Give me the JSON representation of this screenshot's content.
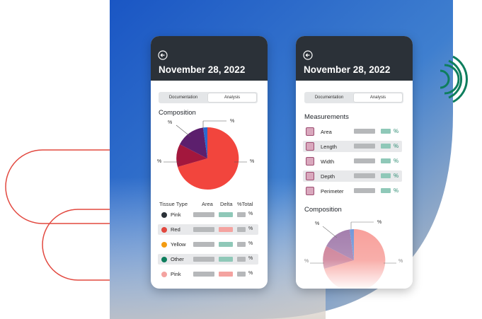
{
  "colors": {
    "header": "#2b3138",
    "accent_red": "#e2483f",
    "pink_dot": "#f4a3a0",
    "green_bar": "#8fc8b8",
    "decor_green": "#0e7e5d"
  },
  "left_phone": {
    "date": "November 28, 2022",
    "back_icon": "arrow-left-circle-icon",
    "tabs": [
      {
        "label": "Documentation",
        "active": false
      },
      {
        "label": "Analysis",
        "active": true
      }
    ],
    "section_title": "Composition",
    "pie_labels": [
      "%",
      "%",
      "%",
      "%"
    ],
    "table_headers": [
      "Tissue Type",
      "Area",
      "Delta",
      "%Total"
    ],
    "rows": [
      {
        "name": "Pink",
        "dot": "#2b3138",
        "pct": "%"
      },
      {
        "name": "Red",
        "dot": "#e2483f",
        "pct": "%"
      },
      {
        "name": "Yellow",
        "dot": "#f39c12",
        "pct": "%"
      },
      {
        "name": "Other",
        "dot": "#0e7e5d",
        "pct": "%"
      },
      {
        "name": "Pink",
        "dot": "#f4a3a0",
        "pct": "%"
      }
    ]
  },
  "right_phone": {
    "date": "November 28, 2022",
    "back_icon": "arrow-left-circle-icon",
    "tabs": [
      {
        "label": "Documentation",
        "active": false
      },
      {
        "label": "Analysis",
        "active": true
      }
    ],
    "measurements_title": "Measurements",
    "measurements": [
      {
        "name": "Area",
        "icon": "area-icon",
        "pct": "%"
      },
      {
        "name": "Length",
        "icon": "length-icon",
        "pct": "%"
      },
      {
        "name": "Width",
        "icon": "width-icon",
        "pct": "%"
      },
      {
        "name": "Depth",
        "icon": "depth-icon",
        "pct": "%"
      },
      {
        "name": "Perimeter",
        "icon": "perimeter-icon",
        "pct": "%"
      }
    ],
    "composition_title": "Composition",
    "pie_labels": [
      "%",
      "%",
      "%",
      "%"
    ]
  }
}
